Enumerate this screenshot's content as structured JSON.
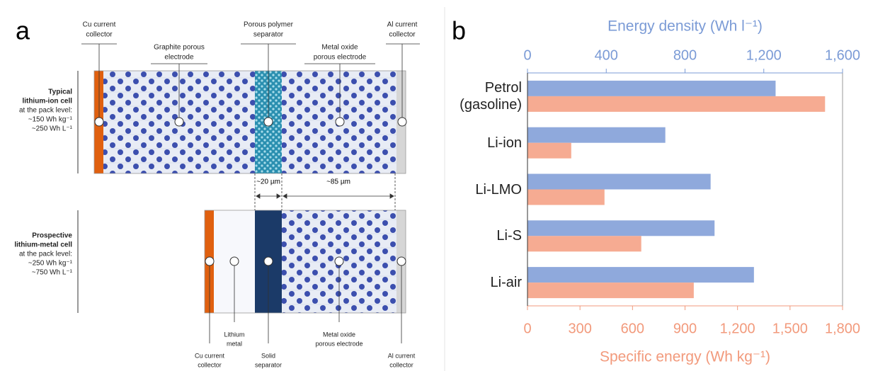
{
  "panel_a": {
    "label": "a",
    "top_cell": {
      "title_lines": [
        "Typical",
        "lithium-ion cell"
      ],
      "spec_lines": [
        "at the pack level:",
        "~150 Wh kg⁻¹",
        "~250 Wh L⁻¹"
      ]
    },
    "bottom_cell": {
      "title_lines": [
        "Prospective",
        "lithium-metal cell"
      ],
      "spec_lines": [
        "at the pack level:",
        "~250 Wh kg⁻¹",
        "~750 Wh L⁻¹"
      ]
    },
    "top_labels": [
      {
        "lines": [
          "Cu current",
          "collector"
        ]
      },
      {
        "lines": [
          "Graphite porous",
          "electrode"
        ]
      },
      {
        "lines": [
          "Porous polymer",
          "separator"
        ]
      },
      {
        "lines": [
          "Metal oxide",
          "porous electrode"
        ]
      },
      {
        "lines": [
          "Al current",
          "collector"
        ]
      }
    ],
    "bottom_labels": [
      {
        "lines": [
          "Cu current",
          "collector"
        ]
      },
      {
        "lines": [
          "Lithium",
          "metal"
        ]
      },
      {
        "lines": [
          "Solid",
          "separator"
        ]
      },
      {
        "lines": [
          "Metal oxide",
          "porous electrode"
        ]
      },
      {
        "lines": [
          "Al current",
          "collector"
        ]
      }
    ],
    "dimensions": [
      "~20 µm",
      "~85 µm"
    ]
  },
  "panel_b_label": "b",
  "chart_data": {
    "type": "bar",
    "orientation": "horizontal",
    "categories": [
      "Petrol (gasoline)",
      "Li-ion",
      "Li-LMO",
      "Li-S",
      "Li-air"
    ],
    "series": [
      {
        "color": "#8fa9dc",
        "axis": "x2",
        "values": [
          1260,
          700,
          930,
          950,
          1150
        ]
      },
      {
        "color": "#f6ab92",
        "values": [
          1700,
          250,
          440,
          650,
          950
        ]
      }
    ],
    "xlabel": "Specific energy (Wh kg⁻¹)",
    "xlabel_color": "#f29a7c",
    "x2label": "Energy density (Wh l⁻¹)",
    "x2label_color": "#7b9bd6",
    "xlim": [
      0,
      1800
    ],
    "xticks": [
      0,
      300,
      600,
      900,
      {
        "value": 1200,
        "label": "1,200"
      },
      {
        "value": 1500,
        "label": "1,500"
      },
      {
        "value": 1800,
        "label": "1,800"
      }
    ],
    "x2lim": [
      0,
      1600
    ],
    "x2ticks": [
      0,
      400,
      800,
      {
        "value": 1200,
        "label": "1,200"
      },
      {
        "value": 1600,
        "label": "1,600"
      }
    ]
  }
}
